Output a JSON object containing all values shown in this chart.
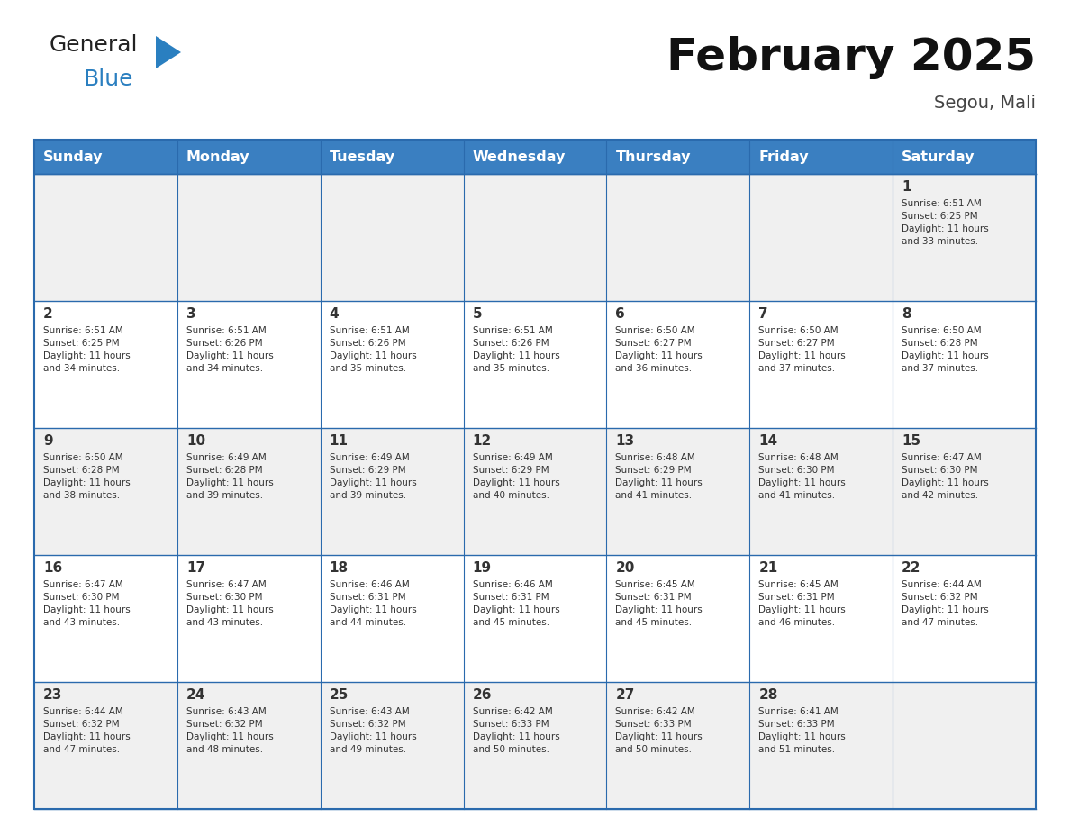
{
  "title": "February 2025",
  "subtitle": "Segou, Mali",
  "days_of_week": [
    "Sunday",
    "Monday",
    "Tuesday",
    "Wednesday",
    "Thursday",
    "Friday",
    "Saturday"
  ],
  "header_bg": "#3a7fc1",
  "header_text_color": "#ffffff",
  "cell_bg_odd": "#f0f0f0",
  "cell_bg_even": "#ffffff",
  "border_color": "#2a6aad",
  "day_number_color": "#333333",
  "info_text_color": "#333333",
  "title_color": "#111111",
  "subtitle_color": "#444444",
  "logo_general_color": "#222222",
  "logo_blue_color": "#2a7fc0",
  "calendar_data": [
    [
      null,
      null,
      null,
      null,
      null,
      null,
      1
    ],
    [
      2,
      3,
      4,
      5,
      6,
      7,
      8
    ],
    [
      9,
      10,
      11,
      12,
      13,
      14,
      15
    ],
    [
      16,
      17,
      18,
      19,
      20,
      21,
      22
    ],
    [
      23,
      24,
      25,
      26,
      27,
      28,
      null
    ]
  ],
  "sunrise_data": {
    "1": "Sunrise: 6:51 AM\nSunset: 6:25 PM\nDaylight: 11 hours\nand 33 minutes.",
    "2": "Sunrise: 6:51 AM\nSunset: 6:25 PM\nDaylight: 11 hours\nand 34 minutes.",
    "3": "Sunrise: 6:51 AM\nSunset: 6:26 PM\nDaylight: 11 hours\nand 34 minutes.",
    "4": "Sunrise: 6:51 AM\nSunset: 6:26 PM\nDaylight: 11 hours\nand 35 minutes.",
    "5": "Sunrise: 6:51 AM\nSunset: 6:26 PM\nDaylight: 11 hours\nand 35 minutes.",
    "6": "Sunrise: 6:50 AM\nSunset: 6:27 PM\nDaylight: 11 hours\nand 36 minutes.",
    "7": "Sunrise: 6:50 AM\nSunset: 6:27 PM\nDaylight: 11 hours\nand 37 minutes.",
    "8": "Sunrise: 6:50 AM\nSunset: 6:28 PM\nDaylight: 11 hours\nand 37 minutes.",
    "9": "Sunrise: 6:50 AM\nSunset: 6:28 PM\nDaylight: 11 hours\nand 38 minutes.",
    "10": "Sunrise: 6:49 AM\nSunset: 6:28 PM\nDaylight: 11 hours\nand 39 minutes.",
    "11": "Sunrise: 6:49 AM\nSunset: 6:29 PM\nDaylight: 11 hours\nand 39 minutes.",
    "12": "Sunrise: 6:49 AM\nSunset: 6:29 PM\nDaylight: 11 hours\nand 40 minutes.",
    "13": "Sunrise: 6:48 AM\nSunset: 6:29 PM\nDaylight: 11 hours\nand 41 minutes.",
    "14": "Sunrise: 6:48 AM\nSunset: 6:30 PM\nDaylight: 11 hours\nand 41 minutes.",
    "15": "Sunrise: 6:47 AM\nSunset: 6:30 PM\nDaylight: 11 hours\nand 42 minutes.",
    "16": "Sunrise: 6:47 AM\nSunset: 6:30 PM\nDaylight: 11 hours\nand 43 minutes.",
    "17": "Sunrise: 6:47 AM\nSunset: 6:30 PM\nDaylight: 11 hours\nand 43 minutes.",
    "18": "Sunrise: 6:46 AM\nSunset: 6:31 PM\nDaylight: 11 hours\nand 44 minutes.",
    "19": "Sunrise: 6:46 AM\nSunset: 6:31 PM\nDaylight: 11 hours\nand 45 minutes.",
    "20": "Sunrise: 6:45 AM\nSunset: 6:31 PM\nDaylight: 11 hours\nand 45 minutes.",
    "21": "Sunrise: 6:45 AM\nSunset: 6:31 PM\nDaylight: 11 hours\nand 46 minutes.",
    "22": "Sunrise: 6:44 AM\nSunset: 6:32 PM\nDaylight: 11 hours\nand 47 minutes.",
    "23": "Sunrise: 6:44 AM\nSunset: 6:32 PM\nDaylight: 11 hours\nand 47 minutes.",
    "24": "Sunrise: 6:43 AM\nSunset: 6:32 PM\nDaylight: 11 hours\nand 48 minutes.",
    "25": "Sunrise: 6:43 AM\nSunset: 6:32 PM\nDaylight: 11 hours\nand 49 minutes.",
    "26": "Sunrise: 6:42 AM\nSunset: 6:33 PM\nDaylight: 11 hours\nand 50 minutes.",
    "27": "Sunrise: 6:42 AM\nSunset: 6:33 PM\nDaylight: 11 hours\nand 50 minutes.",
    "28": "Sunrise: 6:41 AM\nSunset: 6:33 PM\nDaylight: 11 hours\nand 51 minutes."
  },
  "fig_width": 11.88,
  "fig_height": 9.18,
  "dpi": 100
}
